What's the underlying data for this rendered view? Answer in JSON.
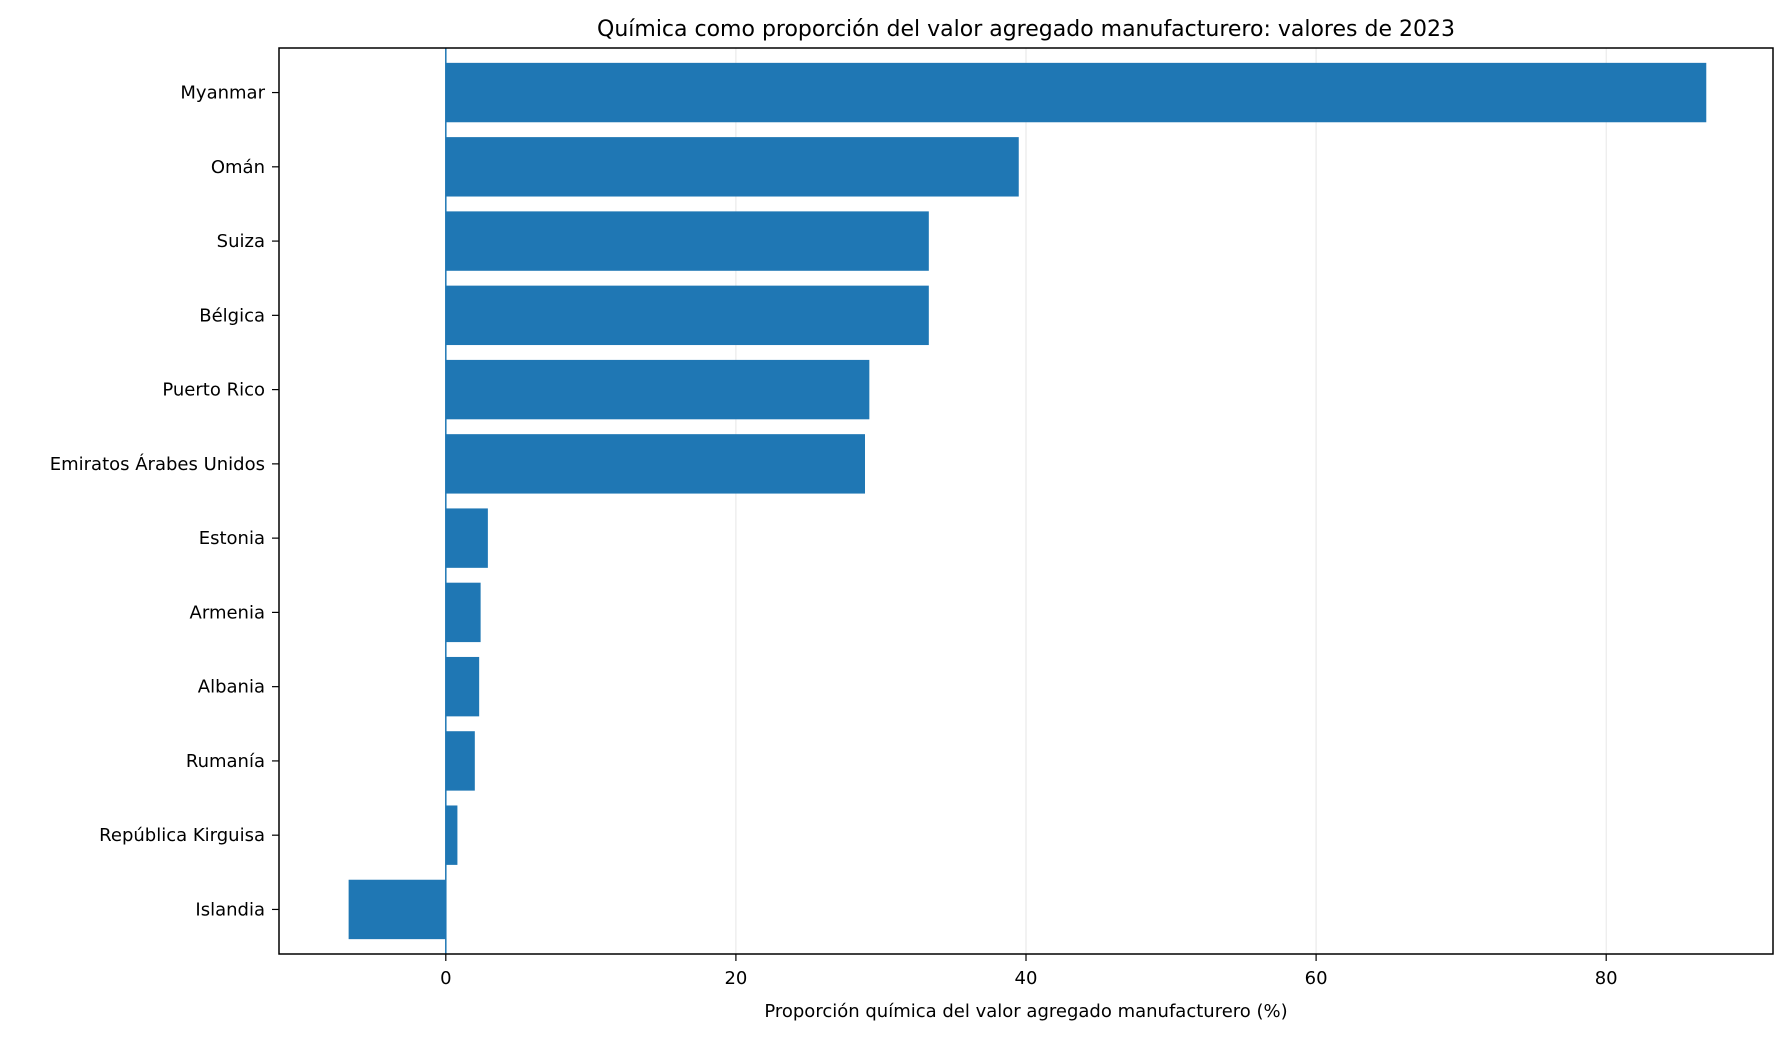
{
  "chart_data": {
    "type": "bar",
    "orientation": "horizontal",
    "title": "Química como proporción del valor agregado manufacturero: valores de 2023",
    "xlabel": "Proporción química del valor agregado manufacturero (%)",
    "ylabel": "",
    "categories": [
      "Myanmar",
      "Omán",
      "Suiza",
      "Bélgica",
      "Puerto Rico",
      "Emiratos Árabes Unidos",
      "Estonia",
      "Armenia",
      "Albania",
      "Rumanía",
      "República Kirguisa",
      "Islandia"
    ],
    "values": [
      86.9,
      39.5,
      33.3,
      33.3,
      29.2,
      28.9,
      2.9,
      2.4,
      2.3,
      2.0,
      0.8,
      -6.7
    ],
    "xlim": [
      -11.5,
      91.5
    ],
    "xticks": [
      0,
      20,
      40,
      60,
      80
    ],
    "xtick_labels": [
      "0",
      "20",
      "40",
      "60",
      "80"
    ],
    "grid": "vertical",
    "bar_color": "#1f77b4",
    "zero_line_color": "#1f77b4",
    "legend": "none"
  }
}
